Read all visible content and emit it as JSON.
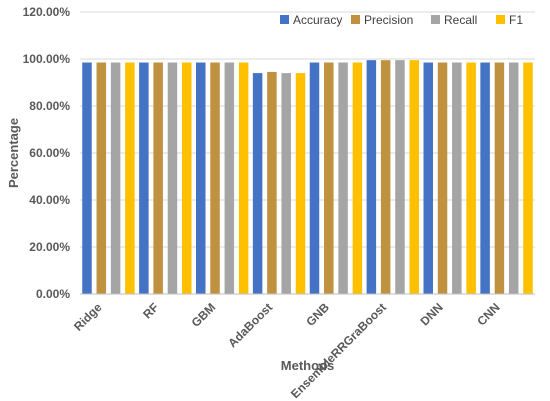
{
  "chart_data": {
    "type": "bar",
    "title": "",
    "xlabel": "Methods",
    "ylabel": "Percentage",
    "ylim": [
      0,
      120
    ],
    "yticks": [
      "0.00%",
      "20.00%",
      "40.00%",
      "60.00%",
      "80.00%",
      "100.00%",
      "120.00%"
    ],
    "grid": true,
    "legend_position": "top-right",
    "categories": [
      "Ridge",
      "RF",
      "GBM",
      "AdaBoost",
      "GNB",
      "EnsembleRRGraBoost",
      "DNN",
      "CNN"
    ],
    "series": [
      {
        "name": "Accuracy",
        "color": "#4472C4",
        "values": [
          98.5,
          98.5,
          98.5,
          94.0,
          98.5,
          99.5,
          98.5,
          98.5
        ]
      },
      {
        "name": "Precision",
        "color": "#C0913F",
        "values": [
          98.5,
          98.5,
          98.5,
          94.5,
          98.5,
          99.5,
          98.5,
          98.5
        ]
      },
      {
        "name": "Recall",
        "color": "#A5A5A5",
        "values": [
          98.5,
          98.5,
          98.5,
          94.0,
          98.5,
          99.5,
          98.5,
          98.5
        ]
      },
      {
        "name": "F1",
        "color": "#FFC000",
        "values": [
          98.5,
          98.5,
          98.5,
          94.0,
          98.5,
          99.5,
          98.5,
          98.5
        ]
      }
    ]
  }
}
